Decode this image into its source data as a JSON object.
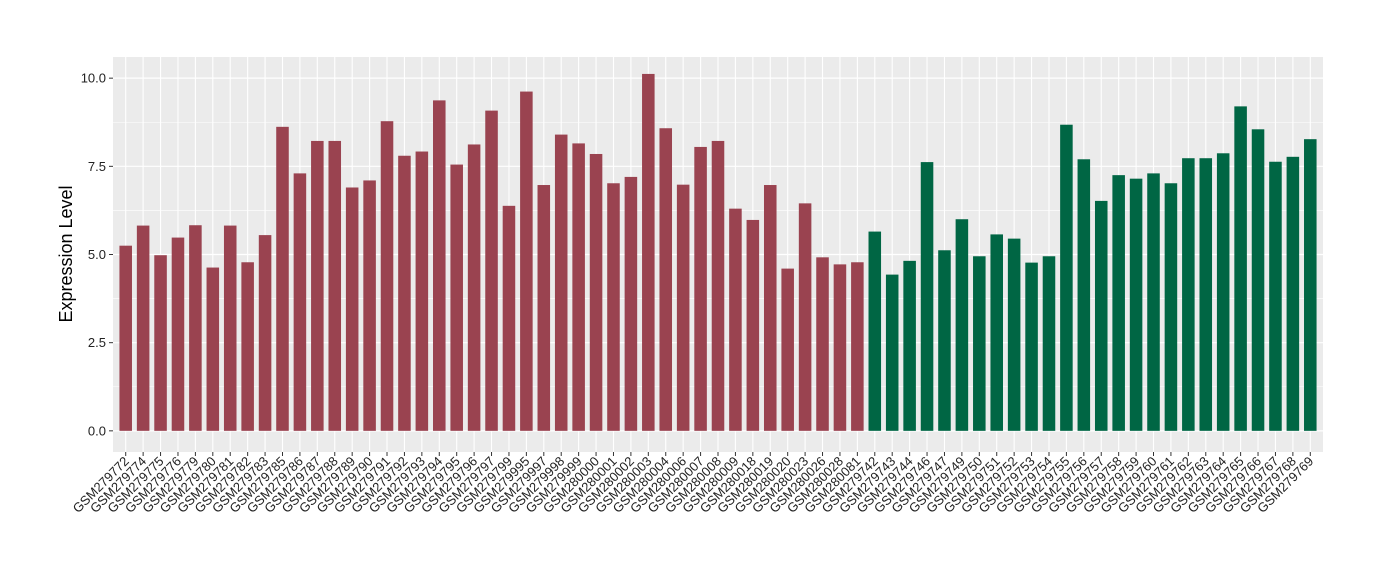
{
  "chart_data": {
    "type": "bar",
    "title": "",
    "xlabel": "",
    "ylabel": "Expression Level",
    "ylim": [
      -0.6,
      10.6
    ],
    "yticks": [
      0.0,
      2.5,
      5.0,
      7.5,
      10.0
    ],
    "ytick_labels": [
      "0.0",
      "2.5",
      "5.0",
      "7.5",
      "10.0"
    ],
    "grid": true,
    "legend": "none",
    "colors": {
      "group1": "#9a4350",
      "group2": "#006644",
      "panel": "#ebebeb",
      "grid": "#ffffff"
    },
    "series": [
      {
        "categories": [
          "GSM279772",
          "GSM279774",
          "GSM279775",
          "GSM279776",
          "GSM279779",
          "GSM279780",
          "GSM279781",
          "GSM279782",
          "GSM279783",
          "GSM279785",
          "GSM279786",
          "GSM279787",
          "GSM279788",
          "GSM279789",
          "GSM279790",
          "GSM279791",
          "GSM279792",
          "GSM279793",
          "GSM279794",
          "GSM279795",
          "GSM279796",
          "GSM279797",
          "GSM279799",
          "GSM279995",
          "GSM279997",
          "GSM279998",
          "GSM279999",
          "GSM280000",
          "GSM280001",
          "GSM280002",
          "GSM280003",
          "GSM280004",
          "GSM280006",
          "GSM280007",
          "GSM280008",
          "GSM280009",
          "GSM280018",
          "GSM280019",
          "GSM280020",
          "GSM280023",
          "GSM280026",
          "GSM280028",
          "GSM280081"
        ],
        "values": [
          5.25,
          5.82,
          4.98,
          5.48,
          5.83,
          4.63,
          5.82,
          4.78,
          5.55,
          8.62,
          7.3,
          8.22,
          8.22,
          6.9,
          7.1,
          8.78,
          7.8,
          7.92,
          9.37,
          7.55,
          8.12,
          9.08,
          6.38,
          9.62,
          6.97,
          8.4,
          8.15,
          7.85,
          7.02,
          7.2,
          10.12,
          8.58,
          6.98,
          8.05,
          8.22,
          6.3,
          5.98,
          6.97,
          4.6,
          6.45,
          4.92,
          4.72,
          4.78
        ]
      },
      {
        "categories": [
          "GSM279742",
          "GSM279743",
          "GSM279744",
          "GSM279746",
          "GSM279747",
          "GSM279749",
          "GSM279750",
          "GSM279751",
          "GSM279752",
          "GSM279753",
          "GSM279754",
          "GSM279755",
          "GSM279756",
          "GSM279757",
          "GSM279758",
          "GSM279759",
          "GSM279760",
          "GSM279761",
          "GSM279762",
          "GSM279763",
          "GSM279764",
          "GSM279765",
          "GSM279766",
          "GSM279767",
          "GSM279768",
          "GSM279769"
        ],
        "values": [
          5.65,
          4.43,
          4.82,
          7.62,
          5.12,
          6.0,
          4.95,
          5.57,
          5.45,
          4.77,
          4.95,
          8.68,
          7.7,
          6.52,
          7.25,
          7.15,
          7.3,
          7.02,
          7.73,
          7.73,
          7.87,
          9.2,
          8.55,
          7.63,
          7.77,
          8.27
        ]
      }
    ]
  }
}
